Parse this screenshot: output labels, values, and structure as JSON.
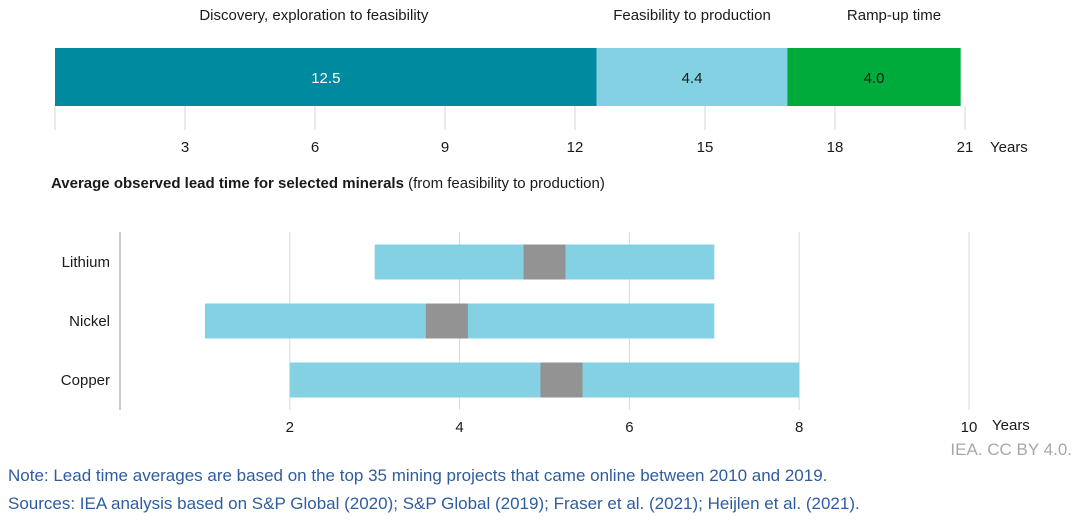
{
  "chart_data": [
    {
      "type": "bar",
      "orientation": "horizontal-stacked",
      "segments": [
        {
          "label": "Discovery, exploration to feasibility",
          "value": 12.5,
          "value_label": "12.5",
          "color": "#008aa0"
        },
        {
          "label": "Feasibility to production",
          "value": 4.4,
          "value_label": "4.4",
          "color": "#84d1e3"
        },
        {
          "label": "Ramp-up time",
          "value": 4.0,
          "value_label": "4.0",
          "color": "#00ab3c"
        }
      ],
      "xticks": [
        3,
        6,
        9,
        12,
        15,
        18,
        21
      ],
      "xlim": [
        0,
        21
      ],
      "xunit": "Years",
      "grid": false
    },
    {
      "type": "bar",
      "orientation": "horizontal-range",
      "title_bold": "Average observed lead time for selected minerals",
      "title_rest": "(from feasibility to production)",
      "categories": [
        "Lithium",
        "Nickel",
        "Copper"
      ],
      "ranges": [
        {
          "category": "Lithium",
          "min": 3.0,
          "max": 7.0,
          "average": 5.0
        },
        {
          "category": "Nickel",
          "min": 1.0,
          "max": 7.0,
          "average": 3.85
        },
        {
          "category": "Copper",
          "min": 2.0,
          "max": 8.0,
          "average": 5.2
        }
      ],
      "xticks": [
        2,
        4,
        6,
        8,
        10
      ],
      "xlim": [
        0,
        10
      ],
      "xunit": "Years",
      "grid": true,
      "range_color": "#84d1e3",
      "average_color": "#939393"
    }
  ],
  "footer": {
    "credit": "IEA. CC BY 4.0.",
    "note": "Note: Lead time averages are based on the top 35 mining projects that came online between 2010 and 2019.",
    "sources": "Sources: IEA analysis based on S&P Global (2020); S&P Global (2019); Fraser et al. (2021); Heijlen et al. (2021)."
  }
}
